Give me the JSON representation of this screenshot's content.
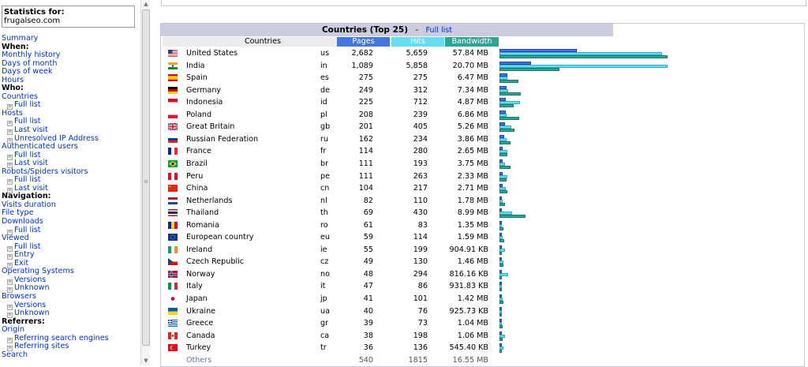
{
  "menu": {
    "stats_title": "Statistics for:",
    "domain": "frugalseo.com",
    "items": [
      {
        "type": "l",
        "label": "Summary",
        "name": "menu-summary"
      },
      {
        "type": "h",
        "label": "When:",
        "name": "menu-heading-when"
      },
      {
        "type": "l",
        "label": "Monthly history",
        "name": "menu-monthly-history"
      },
      {
        "type": "l",
        "label": "Days of month",
        "name": "menu-days-of-month"
      },
      {
        "type": "l",
        "label": "Days of week",
        "name": "menu-days-of-week"
      },
      {
        "type": "l",
        "label": "Hours",
        "name": "menu-hours"
      },
      {
        "type": "h",
        "label": "Who:",
        "name": "menu-heading-who"
      },
      {
        "type": "l",
        "label": "Countries",
        "name": "menu-countries"
      },
      {
        "type": "s",
        "label": "Full list",
        "name": "menu-countries-full-list"
      },
      {
        "type": "l",
        "label": "Hosts",
        "name": "menu-hosts"
      },
      {
        "type": "s",
        "label": "Full list",
        "name": "menu-hosts-full-list"
      },
      {
        "type": "s",
        "label": "Last visit",
        "name": "menu-hosts-last-visit"
      },
      {
        "type": "s",
        "label": "Unresolved IP Address",
        "name": "menu-hosts-unresolved-ip"
      },
      {
        "type": "l",
        "label": "Authenticated users",
        "name": "menu-authenticated-users"
      },
      {
        "type": "s",
        "label": "Full list",
        "name": "menu-auth-full-list"
      },
      {
        "type": "s",
        "label": "Last visit",
        "name": "menu-auth-last-visit"
      },
      {
        "type": "l",
        "label": "Robots/Spiders visitors",
        "name": "menu-robots-spiders"
      },
      {
        "type": "s",
        "label": "Full list",
        "name": "menu-robots-full-list"
      },
      {
        "type": "s",
        "label": "Last visit",
        "name": "menu-robots-last-visit"
      },
      {
        "type": "h",
        "label": "Navigation:",
        "name": "menu-heading-navigation"
      },
      {
        "type": "l",
        "label": "Visits duration",
        "name": "menu-visits-duration"
      },
      {
        "type": "l",
        "label": "File type",
        "name": "menu-file-type"
      },
      {
        "type": "l",
        "label": "Downloads",
        "name": "menu-downloads"
      },
      {
        "type": "s",
        "label": "Full list",
        "name": "menu-downloads-full-list"
      },
      {
        "type": "l",
        "label": "Viewed",
        "name": "menu-viewed"
      },
      {
        "type": "s",
        "label": "Full list",
        "name": "menu-viewed-full-list"
      },
      {
        "type": "s",
        "label": "Entry",
        "name": "menu-viewed-entry"
      },
      {
        "type": "s",
        "label": "Exit",
        "name": "menu-viewed-exit"
      },
      {
        "type": "l",
        "label": "Operating Systems",
        "name": "menu-operating-systems"
      },
      {
        "type": "s",
        "label": "Versions",
        "name": "menu-os-versions"
      },
      {
        "type": "s",
        "label": "Unknown",
        "name": "menu-os-unknown"
      },
      {
        "type": "l",
        "label": "Browsers",
        "name": "menu-browsers"
      },
      {
        "type": "s",
        "label": "Versions",
        "name": "menu-browsers-versions"
      },
      {
        "type": "s",
        "label": "Unknown",
        "name": "menu-browsers-unknown"
      },
      {
        "type": "h",
        "label": "Referrers:",
        "name": "menu-heading-referrers"
      },
      {
        "type": "l",
        "label": "Origin",
        "name": "menu-origin"
      },
      {
        "type": "s",
        "label": "Referring search engines",
        "name": "menu-referring-search-engines"
      },
      {
        "type": "s",
        "label": "Referring sites",
        "name": "menu-referring-sites"
      },
      {
        "type": "l",
        "label": "Search",
        "name": "menu-search"
      }
    ]
  },
  "panel": {
    "title": "Countries (Top 25)",
    "separator": "-",
    "full_list": "Full list"
  },
  "columns": {
    "country": "Countries",
    "pages": "Pages",
    "hits": "Hits",
    "bandwidth": "Bandwidth"
  },
  "colors": {
    "pages": "#4477dd",
    "hits": "#66ddee",
    "bandwidth": "#2ea495",
    "header_bg": "#cccce0"
  },
  "countries": [
    {
      "name": "United States",
      "code": "us",
      "flag": "us-flag-icon",
      "pages": "2,682",
      "hits": "5,659",
      "bandwidth": "57.84 MB",
      "pages_v": 2682,
      "hits_v": 5659,
      "bw_v": 57.84
    },
    {
      "name": "India",
      "code": "in",
      "flag": "in-flag-icon",
      "pages": "1,089",
      "hits": "5,858",
      "bandwidth": "20.70 MB",
      "pages_v": 1089,
      "hits_v": 5858,
      "bw_v": 20.7
    },
    {
      "name": "Spain",
      "code": "es",
      "flag": "es-flag-icon",
      "pages": "275",
      "hits": "275",
      "bandwidth": "6.47 MB",
      "pages_v": 275,
      "hits_v": 275,
      "bw_v": 6.47
    },
    {
      "name": "Germany",
      "code": "de",
      "flag": "de-flag-icon",
      "pages": "249",
      "hits": "312",
      "bandwidth": "7.34 MB",
      "pages_v": 249,
      "hits_v": 312,
      "bw_v": 7.34
    },
    {
      "name": "Indonesia",
      "code": "id",
      "flag": "id-flag-icon",
      "pages": "225",
      "hits": "712",
      "bandwidth": "4.87 MB",
      "pages_v": 225,
      "hits_v": 712,
      "bw_v": 4.87
    },
    {
      "name": "Poland",
      "code": "pl",
      "flag": "pl-flag-icon",
      "pages": "208",
      "hits": "239",
      "bandwidth": "6.86 MB",
      "pages_v": 208,
      "hits_v": 239,
      "bw_v": 6.86
    },
    {
      "name": "Great Britain",
      "code": "gb",
      "flag": "gb-flag-icon",
      "pages": "201",
      "hits": "405",
      "bandwidth": "5.26 MB",
      "pages_v": 201,
      "hits_v": 405,
      "bw_v": 5.26
    },
    {
      "name": "Russian Federation",
      "code": "ru",
      "flag": "ru-flag-icon",
      "pages": "162",
      "hits": "234",
      "bandwidth": "3.86 MB",
      "pages_v": 162,
      "hits_v": 234,
      "bw_v": 3.86
    },
    {
      "name": "France",
      "code": "fr",
      "flag": "fr-flag-icon",
      "pages": "114",
      "hits": "280",
      "bandwidth": "2.65 MB",
      "pages_v": 114,
      "hits_v": 280,
      "bw_v": 2.65
    },
    {
      "name": "Brazil",
      "code": "br",
      "flag": "br-flag-icon",
      "pages": "111",
      "hits": "193",
      "bandwidth": "3.75 MB",
      "pages_v": 111,
      "hits_v": 193,
      "bw_v": 3.75
    },
    {
      "name": "Peru",
      "code": "pe",
      "flag": "pe-flag-icon",
      "pages": "111",
      "hits": "263",
      "bandwidth": "2.33 MB",
      "pages_v": 111,
      "hits_v": 263,
      "bw_v": 2.33
    },
    {
      "name": "China",
      "code": "cn",
      "flag": "cn-flag-icon",
      "pages": "104",
      "hits": "217",
      "bandwidth": "2.71 MB",
      "pages_v": 104,
      "hits_v": 217,
      "bw_v": 2.71
    },
    {
      "name": "Netherlands",
      "code": "nl",
      "flag": "nl-flag-icon",
      "pages": "82",
      "hits": "110",
      "bandwidth": "1.78 MB",
      "pages_v": 82,
      "hits_v": 110,
      "bw_v": 1.78
    },
    {
      "name": "Thailand",
      "code": "th",
      "flag": "th-flag-icon",
      "pages": "69",
      "hits": "430",
      "bandwidth": "8.99 MB",
      "pages_v": 69,
      "hits_v": 430,
      "bw_v": 8.99
    },
    {
      "name": "Romania",
      "code": "ro",
      "flag": "ro-flag-icon",
      "pages": "61",
      "hits": "83",
      "bandwidth": "1.35 MB",
      "pages_v": 61,
      "hits_v": 83,
      "bw_v": 1.35
    },
    {
      "name": "European country",
      "code": "eu",
      "flag": "eu-flag-icon",
      "pages": "59",
      "hits": "114",
      "bandwidth": "1.59 MB",
      "pages_v": 59,
      "hits_v": 114,
      "bw_v": 1.59
    },
    {
      "name": "Ireland",
      "code": "ie",
      "flag": "ie-flag-icon",
      "pages": "55",
      "hits": "199",
      "bandwidth": "904.91 KB",
      "pages_v": 55,
      "hits_v": 199,
      "bw_v": 0.884
    },
    {
      "name": "Czech Republic",
      "code": "cz",
      "flag": "cz-flag-icon",
      "pages": "49",
      "hits": "130",
      "bandwidth": "1.46 MB",
      "pages_v": 49,
      "hits_v": 130,
      "bw_v": 1.46
    },
    {
      "name": "Norway",
      "code": "no",
      "flag": "no-flag-icon",
      "pages": "48",
      "hits": "294",
      "bandwidth": "816.16 KB",
      "pages_v": 48,
      "hits_v": 294,
      "bw_v": 0.797
    },
    {
      "name": "Italy",
      "code": "it",
      "flag": "it-flag-icon",
      "pages": "47",
      "hits": "86",
      "bandwidth": "931.83 KB",
      "pages_v": 47,
      "hits_v": 86,
      "bw_v": 0.91
    },
    {
      "name": "Japan",
      "code": "jp",
      "flag": "jp-flag-icon",
      "pages": "41",
      "hits": "101",
      "bandwidth": "1.42 MB",
      "pages_v": 41,
      "hits_v": 101,
      "bw_v": 1.42
    },
    {
      "name": "Ukraine",
      "code": "ua",
      "flag": "ua-flag-icon",
      "pages": "40",
      "hits": "76",
      "bandwidth": "925.73 KB",
      "pages_v": 40,
      "hits_v": 76,
      "bw_v": 0.904
    },
    {
      "name": "Greece",
      "code": "gr",
      "flag": "gr-flag-icon",
      "pages": "39",
      "hits": "73",
      "bandwidth": "1.04 MB",
      "pages_v": 39,
      "hits_v": 73,
      "bw_v": 1.04
    },
    {
      "name": "Canada",
      "code": "ca",
      "flag": "ca-flag-icon",
      "pages": "38",
      "hits": "198",
      "bandwidth": "1.06 MB",
      "pages_v": 38,
      "hits_v": 198,
      "bw_v": 1.06
    },
    {
      "name": "Turkey",
      "code": "tr",
      "flag": "tr-flag-icon",
      "pages": "36",
      "hits": "136",
      "bandwidth": "545.40 KB",
      "pages_v": 36,
      "hits_v": 136,
      "bw_v": 0.533
    }
  ],
  "others": {
    "name": "Others",
    "pages": "540",
    "hits": "1815",
    "bandwidth": "16.55 MB"
  }
}
